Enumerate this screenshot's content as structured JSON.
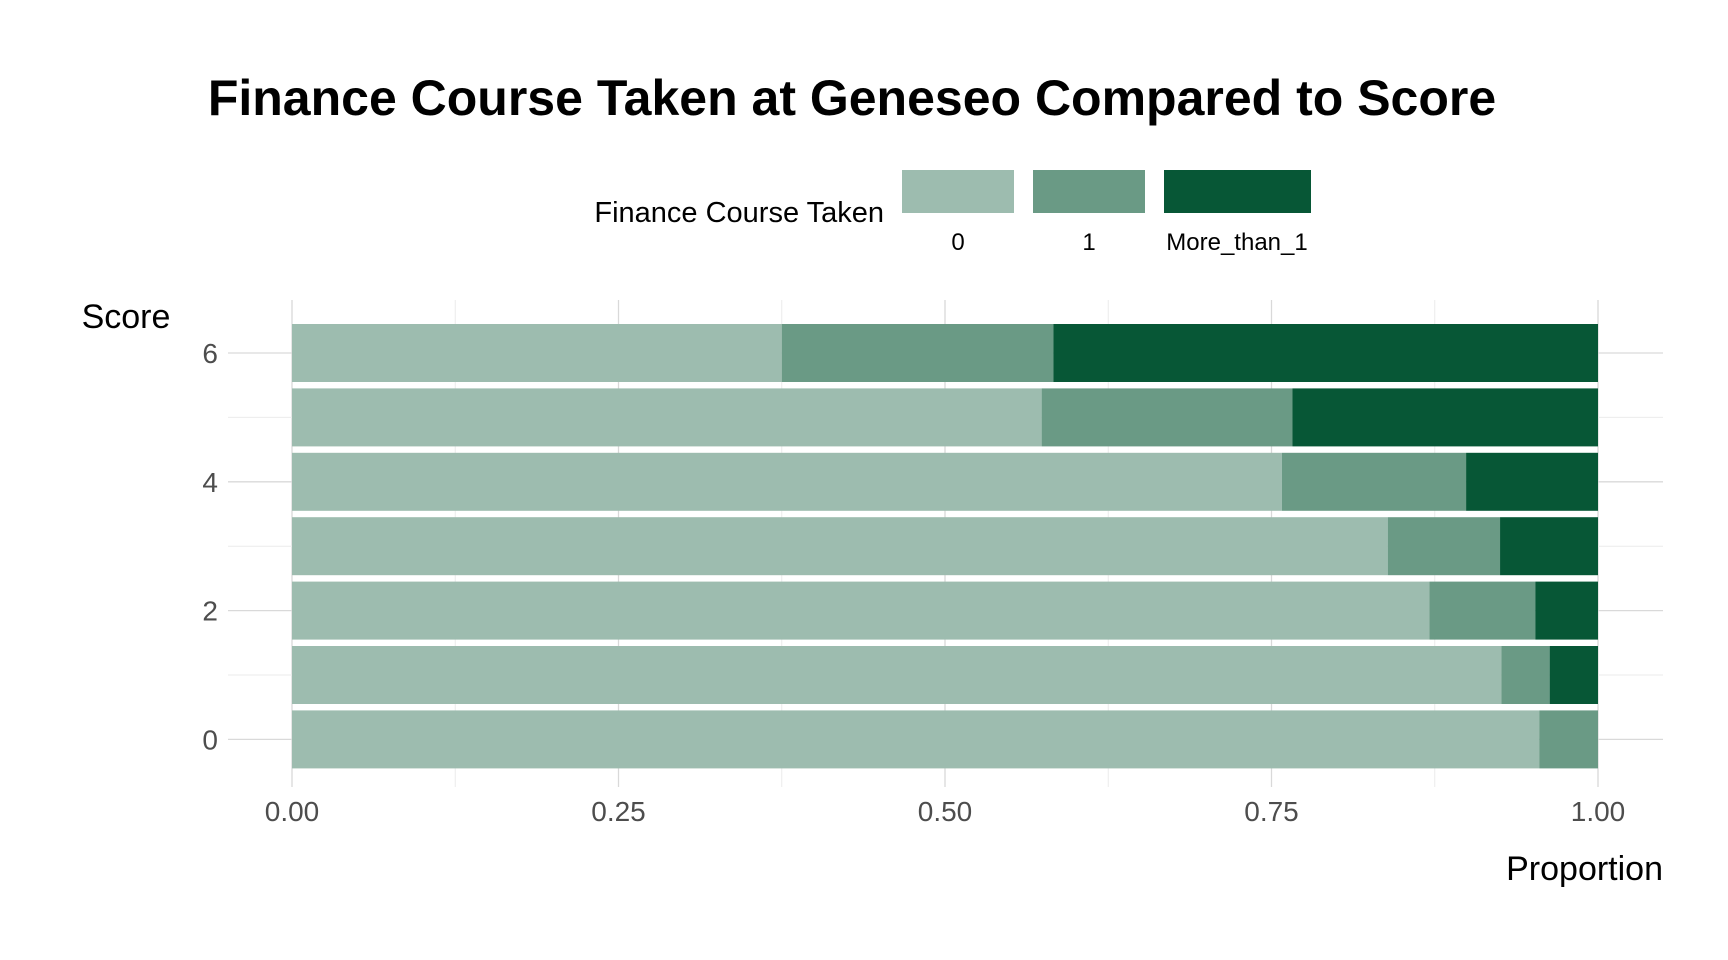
{
  "chart_data": {
    "type": "bar",
    "orientation": "horizontal",
    "stacked": "proportion",
    "title": "Finance Course Taken at Geneseo Compared to Score",
    "xlabel": "Proportion",
    "ylabel": "Score",
    "xlim": [
      0,
      1
    ],
    "ylim": [
      -0.5,
      6.5
    ],
    "x_ticks": [
      "0.00",
      "0.25",
      "0.50",
      "0.75",
      "1.00"
    ],
    "y_ticks": [
      "0",
      "2",
      "4",
      "6"
    ],
    "categories": [
      0,
      1,
      2,
      3,
      4,
      5,
      6
    ],
    "legend": {
      "title": "Finance Course Taken",
      "position": "top"
    },
    "grid": true,
    "series": [
      {
        "name": "0",
        "color": "#9dbcaf",
        "values": [
          0.955,
          0.926,
          0.871,
          0.839,
          0.758,
          0.574,
          0.375
        ]
      },
      {
        "name": "1",
        "color": "#6a9a85",
        "values": [
          0.045,
          0.037,
          0.081,
          0.086,
          0.141,
          0.192,
          0.208
        ]
      },
      {
        "name": "More_than_1",
        "color": "#075736",
        "values": [
          0.0,
          0.037,
          0.048,
          0.075,
          0.101,
          0.234,
          0.417
        ]
      }
    ]
  }
}
